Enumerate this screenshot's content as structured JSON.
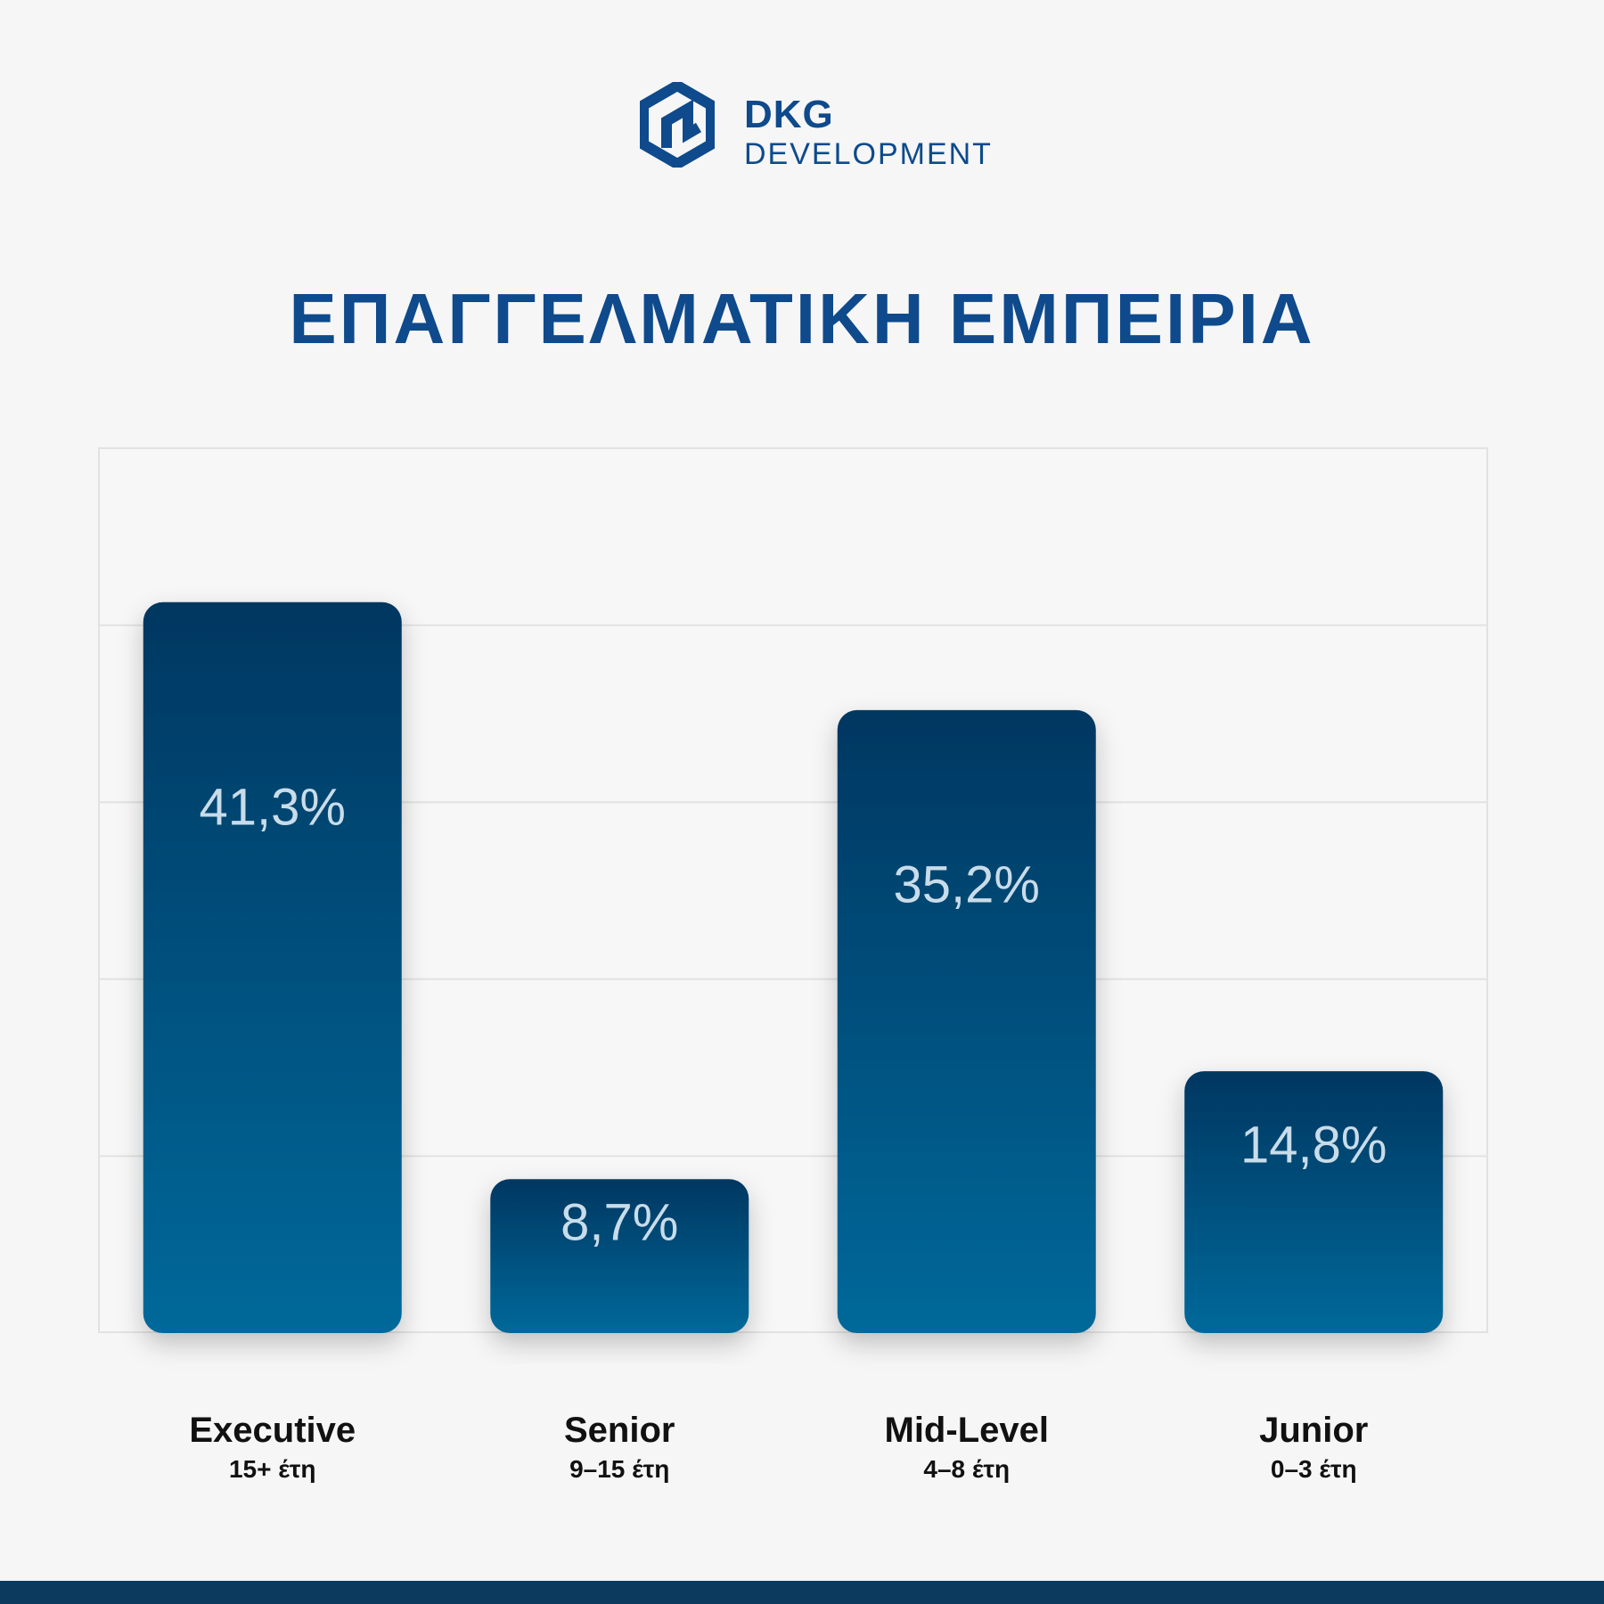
{
  "logo": {
    "name_line1": "DKG",
    "name_line2": "DEVELOPMENT",
    "icon": "hexagon-house-logo-icon"
  },
  "colors": {
    "brand": "#0e4a8c",
    "bar_top": "#023761",
    "bar_bottom": "#05699a",
    "value_label": "#c9dcea",
    "footer": "#0b3a5e"
  },
  "chart_data": {
    "type": "bar",
    "title": "ΕΠΑΓΓΕΛΜΑΤΙΚΗ ΕΜΠΕΙΡΙΑ",
    "categories": [
      "Executive",
      "Senior",
      "Mid-Level",
      "Junior"
    ],
    "subcategories": [
      "15+ έτη",
      "9–15 έτη",
      "4–8 έτη",
      "0–3 έτη"
    ],
    "values": [
      41.3,
      8.7,
      35.2,
      14.8
    ],
    "value_labels": [
      "41,3%",
      "8,7%",
      "35,2%",
      "14,8%"
    ],
    "unit": "%",
    "ylim": [
      0,
      50
    ],
    "grid": true
  }
}
